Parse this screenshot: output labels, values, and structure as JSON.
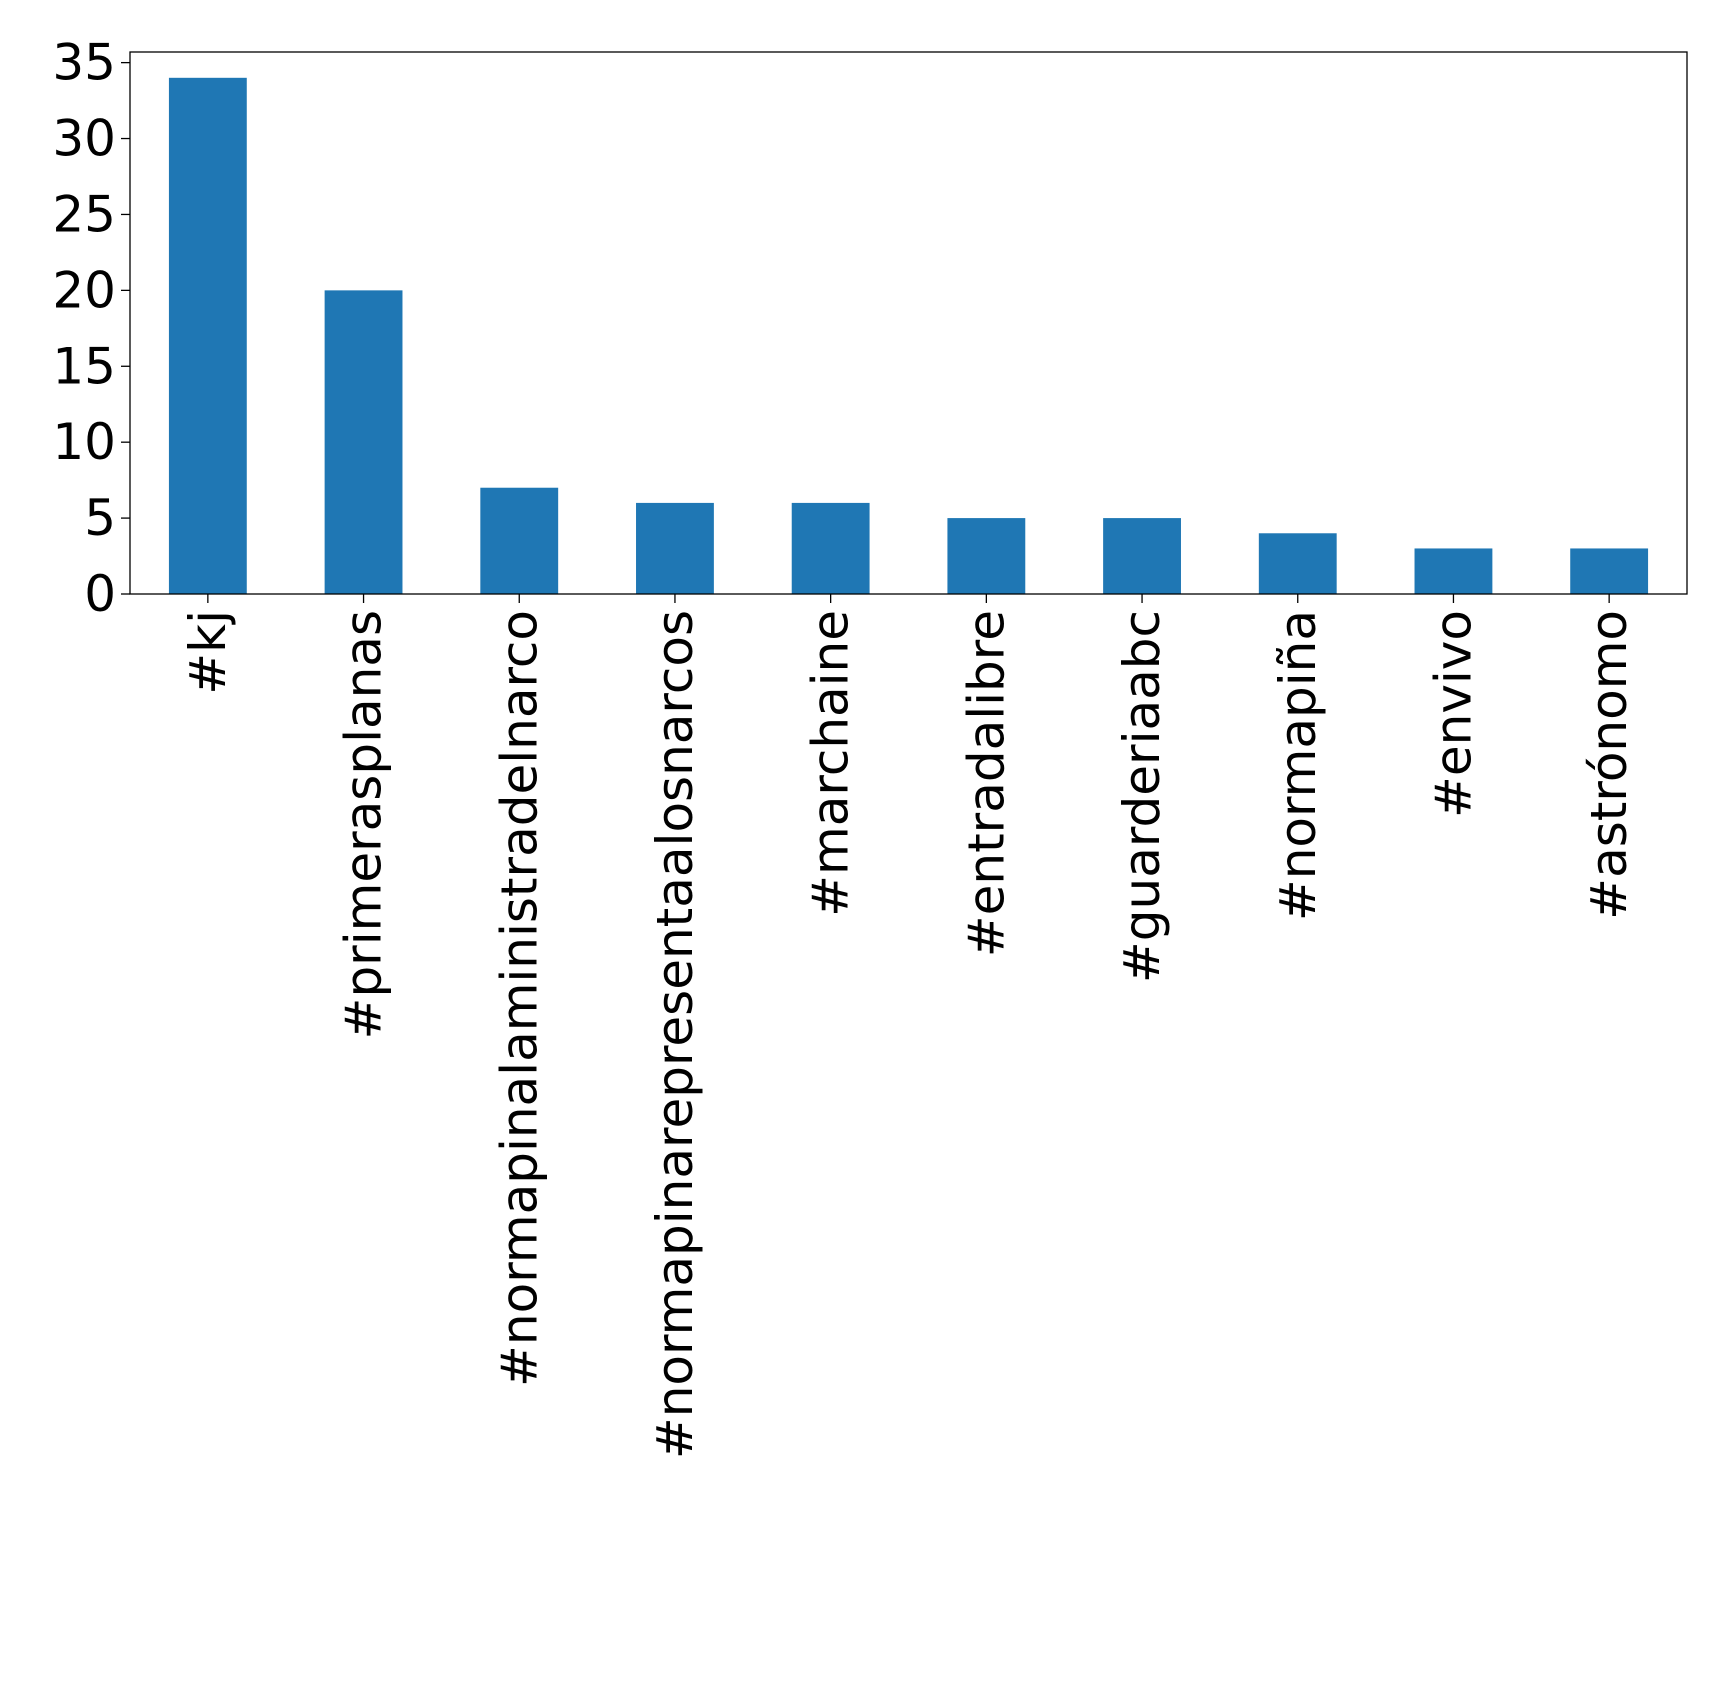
{
  "chart_data": {
    "type": "bar",
    "categories": [
      "#kj",
      "#primerasplanas",
      "#normapinalaministradelnarco",
      "#normapinarepresentaalosnarcos",
      "#marchaine",
      "#entradalibre",
      "#guarderiaabc",
      "#normapiña",
      "#envivo",
      "#astrónomo"
    ],
    "values": [
      34,
      20,
      7,
      6,
      6,
      5,
      5,
      4,
      3,
      3
    ],
    "ylim": [
      0,
      35.7
    ],
    "yticks": [
      0,
      5,
      10,
      15,
      20,
      25,
      30,
      35
    ],
    "bar_color": "#1f77b4",
    "grid": false,
    "title": "",
    "xlabel": "",
    "ylabel": ""
  }
}
